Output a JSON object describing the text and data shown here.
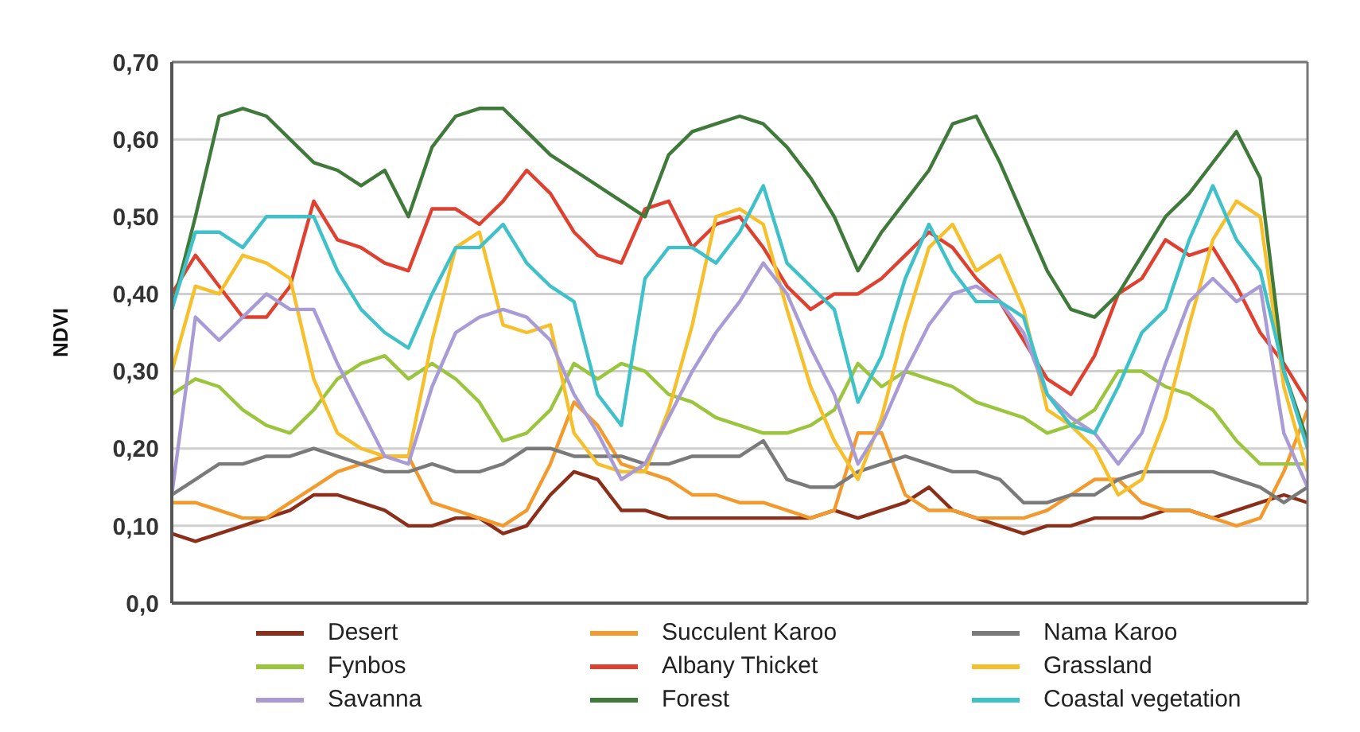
{
  "chart_data": {
    "type": "line",
    "ylabel": "NDVI",
    "categories": [
      null,
      null,
      null,
      null,
      null,
      null,
      null,
      null,
      null,
      null,
      null,
      null,
      null,
      null,
      null,
      null,
      null,
      null,
      null,
      null,
      null,
      null,
      null,
      null,
      null,
      null,
      null,
      null,
      null,
      null,
      null,
      null,
      null,
      null,
      null,
      null,
      null,
      null,
      null,
      null,
      null,
      null,
      null,
      null,
      null,
      null,
      null,
      null,
      null
    ],
    "ylim": [
      0,
      0.7
    ],
    "yticks": [
      {
        "value": 0,
        "label": "0,0"
      },
      {
        "value": 0.1,
        "label": "0,10"
      },
      {
        "value": 0.2,
        "label": "0,20"
      },
      {
        "value": 0.3,
        "label": "0,30"
      },
      {
        "value": 0.4,
        "label": "0,40"
      },
      {
        "value": 0.5,
        "label": "0,50"
      },
      {
        "value": 0.6,
        "label": "0,60"
      },
      {
        "value": 0.7,
        "label": "0,70"
      }
    ],
    "grid": "y",
    "legend": "bottom",
    "marker": "none",
    "line_style": "solid",
    "tick_labels": "y",
    "series": [
      {
        "name": "Desert",
        "color": "#8b2f1a",
        "values": [
          0.09,
          0.08,
          0.09,
          0.1,
          0.11,
          0.12,
          0.14,
          0.14,
          0.13,
          0.12,
          0.1,
          0.1,
          0.11,
          0.11,
          0.09,
          0.1,
          0.14,
          0.17,
          0.16,
          0.12,
          0.12,
          0.11,
          0.11,
          0.11,
          0.11,
          0.11,
          0.11,
          0.11,
          0.12,
          0.11,
          0.12,
          0.13,
          0.15,
          0.12,
          0.11,
          0.1,
          0.09,
          0.1,
          0.1,
          0.11,
          0.11,
          0.11,
          0.12,
          0.12,
          0.11,
          0.12,
          0.13,
          0.14,
          0.13
        ]
      },
      {
        "name": "Succulent Karoo",
        "color": "#f39a2e",
        "values": [
          0.13,
          0.13,
          0.12,
          0.11,
          0.11,
          0.13,
          0.15,
          0.17,
          0.18,
          0.19,
          0.19,
          0.13,
          0.12,
          0.11,
          0.1,
          0.12,
          0.18,
          0.26,
          0.23,
          0.18,
          0.17,
          0.16,
          0.14,
          0.14,
          0.13,
          0.13,
          0.12,
          0.11,
          0.12,
          0.22,
          0.22,
          0.14,
          0.12,
          0.12,
          0.11,
          0.11,
          0.11,
          0.12,
          0.14,
          0.16,
          0.16,
          0.13,
          0.12,
          0.12,
          0.11,
          0.1,
          0.11,
          0.17,
          0.25
        ]
      },
      {
        "name": "Nama Karoo",
        "color": "#7a7a7a",
        "values": [
          0.14,
          0.16,
          0.18,
          0.18,
          0.19,
          0.19,
          0.2,
          0.19,
          0.18,
          0.17,
          0.17,
          0.18,
          0.17,
          0.17,
          0.18,
          0.2,
          0.2,
          0.19,
          0.19,
          0.19,
          0.18,
          0.18,
          0.19,
          0.19,
          0.19,
          0.21,
          0.16,
          0.15,
          0.15,
          0.17,
          0.18,
          0.19,
          0.18,
          0.17,
          0.17,
          0.16,
          0.13,
          0.13,
          0.14,
          0.14,
          0.16,
          0.17,
          0.17,
          0.17,
          0.17,
          0.16,
          0.15,
          0.13,
          0.15
        ]
      },
      {
        "name": "Fynbos",
        "color": "#9ac53d",
        "values": [
          0.27,
          0.29,
          0.28,
          0.25,
          0.23,
          0.22,
          0.25,
          0.29,
          0.31,
          0.32,
          0.29,
          0.31,
          0.29,
          0.26,
          0.21,
          0.22,
          0.25,
          0.31,
          0.29,
          0.31,
          0.3,
          0.27,
          0.26,
          0.24,
          0.23,
          0.22,
          0.22,
          0.23,
          0.25,
          0.31,
          0.28,
          0.3,
          0.29,
          0.28,
          0.26,
          0.25,
          0.24,
          0.22,
          0.23,
          0.25,
          0.3,
          0.3,
          0.28,
          0.27,
          0.25,
          0.21,
          0.18,
          0.18,
          0.18
        ]
      },
      {
        "name": "Albany Thicket",
        "color": "#e0402f",
        "values": [
          0.4,
          0.45,
          0.41,
          0.37,
          0.37,
          0.41,
          0.52,
          0.47,
          0.46,
          0.44,
          0.43,
          0.51,
          0.51,
          0.49,
          0.52,
          0.56,
          0.53,
          0.48,
          0.45,
          0.44,
          0.51,
          0.52,
          0.46,
          0.49,
          0.5,
          0.46,
          0.41,
          0.38,
          0.4,
          0.4,
          0.42,
          0.45,
          0.48,
          0.46,
          0.42,
          0.39,
          0.34,
          0.29,
          0.27,
          0.32,
          0.4,
          0.42,
          0.47,
          0.45,
          0.46,
          0.41,
          0.35,
          0.31,
          0.26
        ]
      },
      {
        "name": "Grassland",
        "color": "#f5c02c",
        "values": [
          0.3,
          0.41,
          0.4,
          0.45,
          0.44,
          0.42,
          0.29,
          0.22,
          0.2,
          0.19,
          0.19,
          0.34,
          0.46,
          0.48,
          0.36,
          0.35,
          0.36,
          0.22,
          0.18,
          0.17,
          0.17,
          0.25,
          0.36,
          0.5,
          0.51,
          0.49,
          0.38,
          0.28,
          0.21,
          0.16,
          0.24,
          0.36,
          0.46,
          0.49,
          0.43,
          0.45,
          0.38,
          0.25,
          0.23,
          0.2,
          0.14,
          0.16,
          0.24,
          0.36,
          0.47,
          0.52,
          0.5,
          0.28,
          0.17
        ]
      },
      {
        "name": "Savanna",
        "color": "#a99bd5",
        "values": [
          0.14,
          0.37,
          0.34,
          0.37,
          0.4,
          0.38,
          0.38,
          0.31,
          0.25,
          0.19,
          0.18,
          0.28,
          0.35,
          0.37,
          0.38,
          0.37,
          0.34,
          0.27,
          0.22,
          0.16,
          0.18,
          0.24,
          0.3,
          0.35,
          0.39,
          0.44,
          0.4,
          0.33,
          0.27,
          0.18,
          0.23,
          0.3,
          0.36,
          0.4,
          0.41,
          0.39,
          0.35,
          0.27,
          0.24,
          0.22,
          0.18,
          0.22,
          0.31,
          0.39,
          0.42,
          0.39,
          0.41,
          0.22,
          0.15
        ]
      },
      {
        "name": "Forest",
        "color": "#3f7a3a",
        "values": [
          0.38,
          0.5,
          0.63,
          0.64,
          0.63,
          0.6,
          0.57,
          0.56,
          0.54,
          0.56,
          0.5,
          0.59,
          0.63,
          0.64,
          0.64,
          0.61,
          0.58,
          0.56,
          0.54,
          0.52,
          0.5,
          0.58,
          0.61,
          0.62,
          0.63,
          0.62,
          0.59,
          0.55,
          0.5,
          0.43,
          0.48,
          0.52,
          0.56,
          0.62,
          0.63,
          0.57,
          0.5,
          0.43,
          0.38,
          0.37,
          0.4,
          0.45,
          0.5,
          0.53,
          0.57,
          0.61,
          0.55,
          0.3,
          0.21
        ]
      },
      {
        "name": "Coastal vegetation",
        "color": "#3ec1c9",
        "values": [
          0.38,
          0.48,
          0.48,
          0.46,
          0.5,
          0.5,
          0.5,
          0.43,
          0.38,
          0.35,
          0.33,
          0.4,
          0.46,
          0.46,
          0.49,
          0.44,
          0.41,
          0.39,
          0.27,
          0.23,
          0.42,
          0.46,
          0.46,
          0.44,
          0.48,
          0.54,
          0.44,
          0.41,
          0.38,
          0.26,
          0.32,
          0.42,
          0.49,
          0.43,
          0.39,
          0.39,
          0.37,
          0.27,
          0.23,
          0.22,
          0.28,
          0.35,
          0.38,
          0.47,
          0.54,
          0.47,
          0.43,
          0.3,
          0.2
        ]
      }
    ]
  }
}
